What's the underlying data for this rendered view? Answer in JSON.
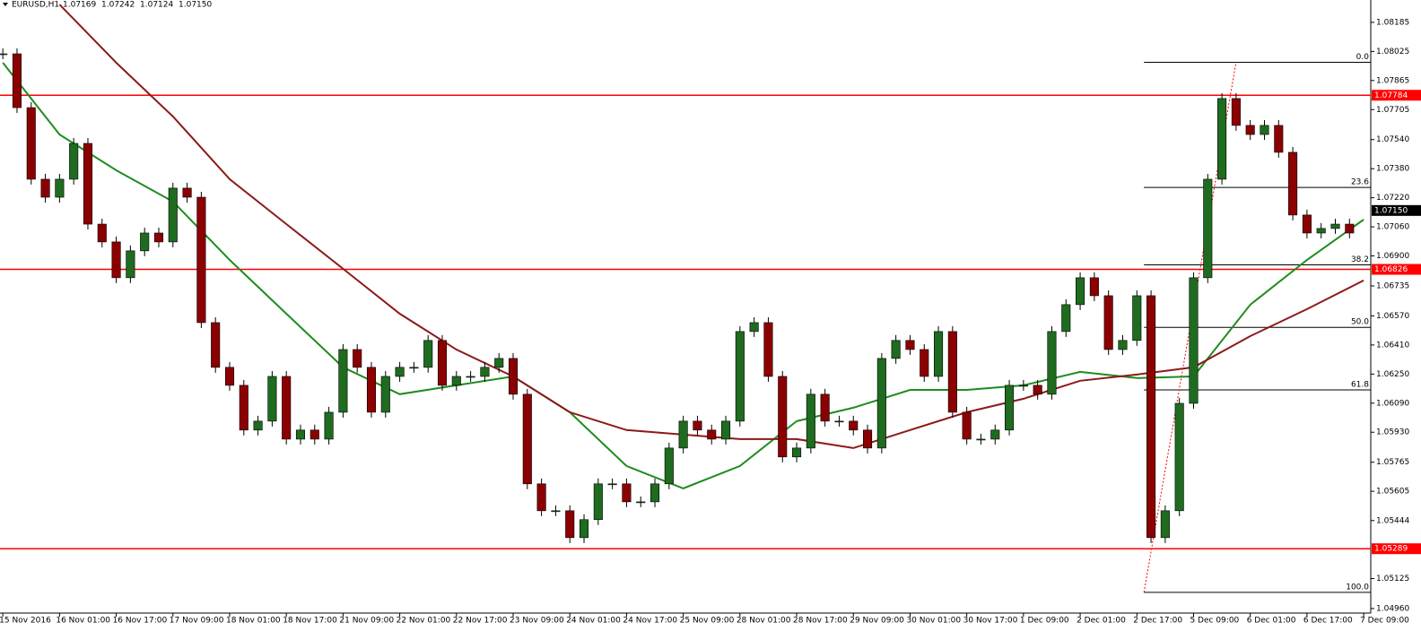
{
  "chart_data": {
    "type": "candlestick",
    "symbol": "EURUSD,H1",
    "ohlc": [
      1.07169,
      1.07242,
      1.07124,
      {
        "value": 1.0715,
        "label": "1.07150"
      }
    ],
    "colors": {
      "up": "#1f6b1f",
      "down": "#8b0000",
      "wick": "#000000"
    },
    "xlim": [
      -0.8,
      386
    ],
    "ylim": [
      1.04935,
      1.08308
    ],
    "x": [
      0,
      4,
      8,
      12,
      16,
      20,
      24,
      28,
      32,
      36,
      40,
      44,
      48,
      52,
      56,
      60,
      64,
      68,
      72,
      76,
      80,
      84,
      88,
      92,
      96,
      100,
      104,
      108,
      112,
      116,
      120,
      124,
      128,
      132,
      136,
      140,
      144,
      148,
      152,
      156,
      160,
      164,
      168,
      172,
      176,
      180,
      184,
      188,
      192,
      196,
      200,
      204,
      208,
      212,
      216,
      220,
      224,
      228,
      232,
      236,
      240,
      244,
      248,
      252,
      256,
      260,
      264,
      268,
      272,
      276,
      280,
      284,
      288,
      292,
      296,
      300,
      304,
      308,
      312,
      316,
      320,
      324,
      328,
      332,
      336,
      340,
      344,
      348,
      352,
      356,
      360,
      364,
      368,
      372,
      376,
      380
    ],
    "close": [
      1.08012,
      1.07716,
      1.07322,
      1.07223,
      1.07322,
      1.07519,
      1.07075,
      1.06977,
      1.0678,
      1.06928,
      1.07026,
      1.06977,
      1.07273,
      1.07223,
      1.06533,
      1.06287,
      1.06188,
      1.05942,
      1.05991,
      1.06237,
      1.05892,
      1.05942,
      1.05892,
      1.0604,
      1.06385,
      1.06287,
      1.0604,
      1.06237,
      1.06287,
      1.06287,
      1.06435,
      1.06188,
      1.06237,
      1.06237,
      1.06287,
      1.06336,
      1.06139,
      1.05646,
      1.05498,
      1.05498,
      1.0535,
      1.05449,
      1.05646,
      1.05646,
      1.05547,
      1.05547,
      1.05646,
      1.05843,
      1.05991,
      1.05942,
      1.05892,
      1.05991,
      1.06484,
      1.06533,
      1.06237,
      1.05794,
      1.05843,
      1.06139,
      1.05991,
      1.05991,
      1.05942,
      1.05843,
      1.06336,
      1.06435,
      1.06385,
      1.06237,
      1.06484,
      1.0604,
      1.05892,
      1.05892,
      1.05942,
      1.06188,
      1.06188,
      1.06139,
      1.06484,
      1.06632,
      1.0678,
      1.06681,
      1.06385,
      1.06435,
      1.06681,
      1.0535,
      1.05498,
      1.06089,
      1.0678,
      1.07322,
      1.07766,
      1.07618,
      1.07568,
      1.07618,
      1.0747,
      1.07125,
      1.07026,
      1.07051,
      1.07075,
      1.07026
    ],
    "moving_averages": [
      {
        "color": "#1e8c1e",
        "x": [
          0,
          16,
          32,
          48,
          64,
          80,
          96,
          112,
          128,
          144,
          160,
          176,
          192,
          208,
          224,
          240,
          256,
          272,
          288,
          304,
          320,
          336,
          352,
          368,
          384
        ],
        "values": [
          1.07963,
          1.07568,
          1.07371,
          1.07199,
          1.06878,
          1.06582,
          1.06287,
          1.06139,
          1.06188,
          1.06237,
          1.0604,
          1.05744,
          1.05621,
          1.05744,
          1.05991,
          1.06065,
          1.06163,
          1.06163,
          1.06188,
          1.06262,
          1.06228,
          1.06237,
          1.06632,
          1.06878,
          1.071
        ]
      },
      {
        "color": "#8b1a1a",
        "x": [
          16,
          32,
          48,
          64,
          80,
          96,
          112,
          128,
          144,
          160,
          176,
          192,
          208,
          224,
          240,
          256,
          272,
          288,
          304,
          320,
          336,
          352,
          368,
          384
        ],
        "values": [
          1.08283,
          1.07963,
          1.07667,
          1.07322,
          1.07075,
          1.06829,
          1.06582,
          1.06385,
          1.06237,
          1.0604,
          1.05942,
          1.05917,
          1.05892,
          1.05892,
          1.05843,
          1.05942,
          1.0604,
          1.06114,
          1.06213,
          1.06247,
          1.06287,
          1.06459,
          1.06607,
          1.06765
        ]
      }
    ],
    "hlines": {
      "color": "#ff0000",
      "values": [
        1.07784,
        1.06826,
        1.05289
      ]
    },
    "current_price": {
      "value": 1.0715,
      "label": "1.07150"
    },
    "fibonacci": {
      "high": 1.07965,
      "low": 1.05049,
      "x": [
        322,
        348
      ],
      "levels": [
        {
          "value": 0,
          "label": "0.0"
        },
        23.6,
        38.2,
        {
          "value": 50,
          "label": "50.0"
        },
        61.8,
        {
          "value": 100,
          "label": "100.0"
        }
      ]
    },
    "yticks": [
      1.08185,
      1.08025,
      1.07865,
      1.07705,
      {
        "value": 1.0754,
        "label": "1.07540"
      },
      {
        "value": 1.0738,
        "label": "1.07380"
      },
      {
        "value": 1.0722,
        "label": "1.07220"
      },
      {
        "value": 1.0706,
        "label": "1.07060"
      },
      {
        "value": 1.069,
        "label": "1.06900"
      },
      1.06735,
      {
        "value": 1.0657,
        "label": "1.06570"
      },
      {
        "value": 1.0641,
        "label": "1.06410"
      },
      {
        "value": 1.0625,
        "label": "1.06250"
      },
      {
        "value": 1.0609,
        "label": "1.06090"
      },
      {
        "value": 1.0593,
        "label": "1.05930"
      },
      1.05765,
      1.05605,
      1.05444,
      1.05125,
      {
        "value": 1.0496,
        "label": "1.04960"
      }
    ],
    "xticks": [
      {
        "value": 0,
        "label": "15 Nov 2016"
      },
      {
        "value": 16,
        "label": "16 Nov 01:00"
      },
      {
        "value": 32,
        "label": "16 Nov 17:00"
      },
      {
        "value": 48,
        "label": "17 Nov 09:00"
      },
      {
        "value": 64,
        "label": "18 Nov 01:00"
      },
      {
        "value": 80,
        "label": "18 Nov 17:00"
      },
      {
        "value": 96,
        "label": "21 Nov 09:00"
      },
      {
        "value": 112,
        "label": "22 Nov 01:00"
      },
      {
        "value": 128,
        "label": "22 Nov 17:00"
      },
      {
        "value": 144,
        "label": "23 Nov 09:00"
      },
      {
        "value": 160,
        "label": "24 Nov 01:00"
      },
      {
        "value": 176,
        "label": "24 Nov 17:00"
      },
      {
        "value": 192,
        "label": "25 Nov 09:00"
      },
      {
        "value": 208,
        "label": "28 Nov 01:00"
      },
      {
        "value": 224,
        "label": "28 Nov 17:00"
      },
      {
        "value": 240,
        "label": "29 Nov 09:00"
      },
      {
        "value": 256,
        "label": "30 Nov 01:00"
      },
      {
        "value": 272,
        "label": "30 Nov 17:00"
      },
      {
        "value": 288,
        "label": "1 Dec 09:00"
      },
      {
        "value": 304,
        "label": "2 Dec 01:00"
      },
      {
        "value": 320,
        "label": "2 Dec 17:00"
      },
      {
        "value": 336,
        "label": "5 Dec 09:00"
      },
      {
        "value": 352,
        "label": "6 Dec 01:00"
      },
      {
        "value": 368,
        "label": "6 Dec 17:00"
      },
      {
        "value": 384,
        "label": "7 Dec 09:00"
      }
    ]
  }
}
